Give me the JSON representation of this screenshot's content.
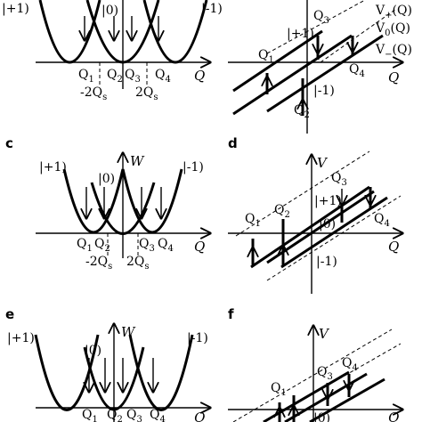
{
  "axes": {
    "W": "W",
    "V": "V",
    "Q": "Q"
  },
  "panel_tags": {
    "c": "c",
    "d": "d",
    "e": "e",
    "f": "f"
  },
  "states": {
    "plus": "|+1)",
    "zero": "|0)",
    "minus": "|-1)"
  },
  "q_labels": {
    "q1": "Q",
    "q2": "Q",
    "q3": "Q",
    "q4": "Q",
    "s1": "1",
    "s2": "2",
    "s3": "3",
    "s4": "4"
  },
  "qs_labels": {
    "neg": "-2Q",
    "pos": "2Q",
    "sub": "s"
  },
  "potential_labels": {
    "vplus": "V",
    "vplus_sub": "+",
    "vzero": "V",
    "vzero_sub": "0",
    "vminus": "V",
    "vminus_sub": "−",
    "arg": "(Q)"
  },
  "colors": {
    "ink": "#000000",
    "background": "#ffffff"
  }
}
